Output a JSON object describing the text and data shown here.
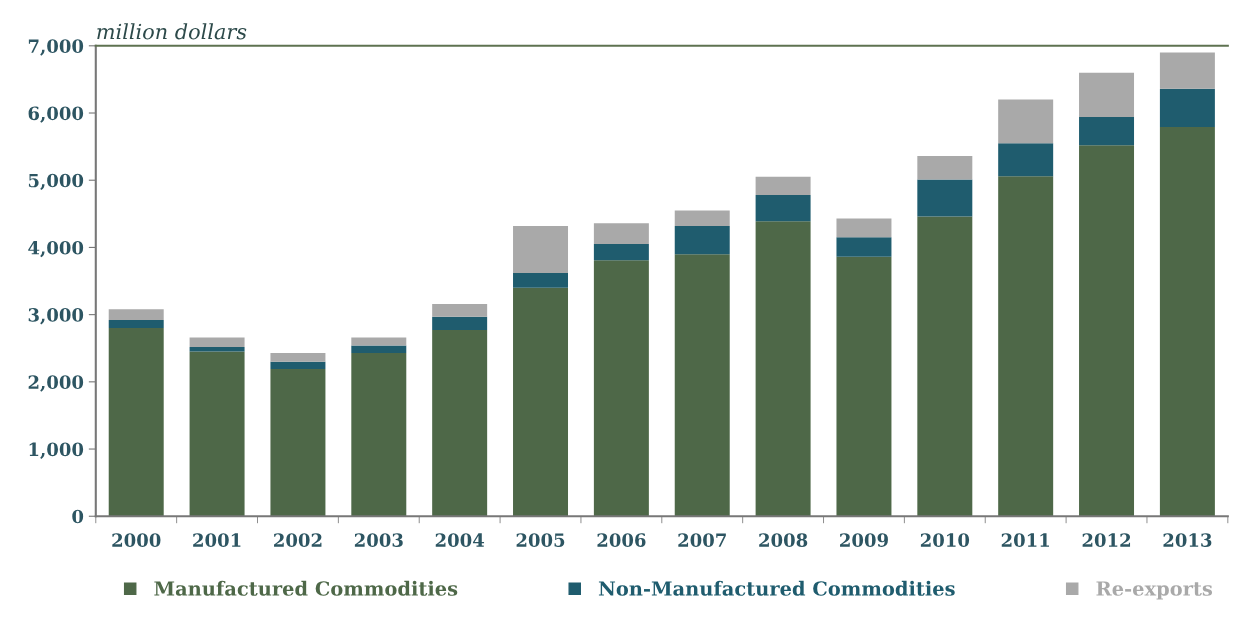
{
  "chart_data": {
    "type": "bar",
    "ylabel": "million dollars",
    "stacked": true,
    "categories": [
      "2000",
      "2001",
      "2002",
      "2003",
      "2004",
      "2005",
      "2006",
      "2007",
      "2008",
      "2009",
      "2010",
      "2011",
      "2012",
      "2013"
    ],
    "series": [
      {
        "name": "Manufactured Commodities",
        "color": "#4e6848",
        "values": [
          2800,
          2450,
          2190,
          2430,
          2770,
          3400,
          3810,
          3900,
          4390,
          3860,
          4460,
          5060,
          5520,
          5790
        ]
      },
      {
        "name": "Non-Manufactured Commodities",
        "color": "#1f5c6e",
        "values": [
          120,
          70,
          110,
          110,
          200,
          220,
          240,
          420,
          390,
          290,
          550,
          490,
          420,
          570
        ]
      },
      {
        "name": "Re-exports",
        "color": "#a9a9a9",
        "values": [
          160,
          140,
          130,
          120,
          190,
          700,
          310,
          230,
          270,
          280,
          350,
          650,
          660,
          540
        ]
      }
    ],
    "ylim": [
      0,
      7000
    ],
    "yticks": [
      {
        "value": 0,
        "label": "0"
      },
      {
        "value": 1000,
        "label": "1,000"
      },
      {
        "value": 2000,
        "label": "2,000"
      },
      {
        "value": 3000,
        "label": "3,000"
      },
      {
        "value": 4000,
        "label": "4,000"
      },
      {
        "value": 5000,
        "label": "5,000"
      },
      {
        "value": 6000,
        "label": "6,000"
      },
      {
        "value": 7000,
        "label": "7,000"
      }
    ],
    "grid": false,
    "legend": "bottom"
  }
}
